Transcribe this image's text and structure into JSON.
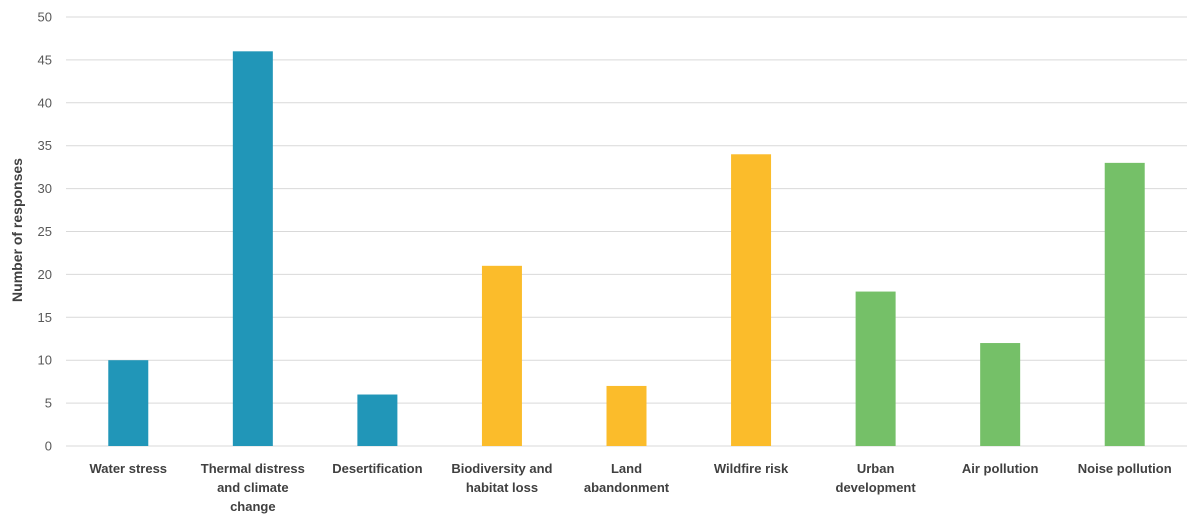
{
  "chart_data": {
    "type": "bar",
    "title": "",
    "xlabel": "",
    "ylabel": "Number of responses",
    "ylim": [
      0,
      50
    ],
    "yticks": [
      0,
      5,
      10,
      15,
      20,
      25,
      30,
      35,
      40,
      45,
      50
    ],
    "grid": true,
    "legend": "none",
    "categories": [
      "Water stress",
      "Thermal distress and climate change",
      "Desertification",
      "Biodiversity and habitat loss",
      "Land abandonment",
      "Wildfire risk",
      "Urban development",
      "Air pollution",
      "Noise pollution"
    ],
    "category_lines": [
      [
        "Water stress"
      ],
      [
        "Thermal distress",
        "and climate",
        "change"
      ],
      [
        "Desertification"
      ],
      [
        "Biodiversity and",
        "habitat loss"
      ],
      [
        "Land",
        "abandonment"
      ],
      [
        "Wildfire risk"
      ],
      [
        "Urban",
        "development"
      ],
      [
        "Air pollution"
      ],
      [
        "Noise pollution"
      ]
    ],
    "values": [
      10,
      46,
      6,
      21,
      7,
      34,
      18,
      12,
      33
    ],
    "bar_colors": [
      "#2196b8",
      "#2196b8",
      "#2196b8",
      "#fbbc2b",
      "#fbbc2b",
      "#fbbc2b",
      "#75c068",
      "#75c068",
      "#75c068"
    ]
  }
}
